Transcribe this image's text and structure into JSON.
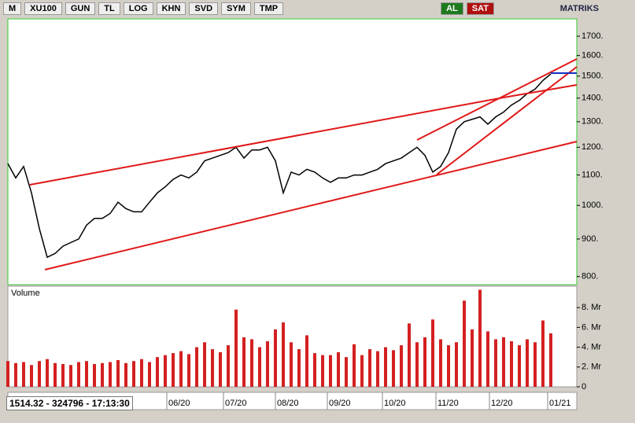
{
  "toolbar": {
    "logo": "M",
    "symbol": "XU100",
    "buttons": [
      "GUN",
      "TL",
      "LOG",
      "KHN",
      "SVD",
      "SYM",
      "TMP"
    ],
    "buy": "AL",
    "sell": "SAT",
    "brand": "MATRIKS"
  },
  "status": "1514.32 - 324796 - 17:13:30",
  "chart_data": [
    {
      "type": "line",
      "log_scale": true,
      "xlim": [
        0,
        72.3
      ],
      "ylim": [
        780,
        1795
      ],
      "yticks": [
        {
          "value": 800,
          "label": "800."
        },
        {
          "value": 900,
          "label": "900."
        },
        {
          "value": 1000,
          "label": "1000."
        },
        {
          "value": 1100,
          "label": "1100."
        },
        {
          "value": 1200,
          "label": "1200."
        },
        {
          "value": 1300,
          "label": "1300."
        },
        {
          "value": 1400,
          "label": "1400."
        },
        {
          "value": 1500,
          "label": "1500."
        },
        {
          "value": 1600,
          "label": "1600."
        },
        {
          "value": 1700,
          "label": "1700."
        }
      ],
      "series": [
        {
          "color": "#000000",
          "values": [
            1140,
            1090,
            1130,
            1040,
            930,
            850,
            860,
            880,
            890,
            900,
            940,
            960,
            960,
            975,
            1010,
            990,
            980,
            980,
            1010,
            1040,
            1060,
            1085,
            1100,
            1090,
            1110,
            1150,
            1160,
            1170,
            1180,
            1200,
            1160,
            1190,
            1190,
            1200,
            1150,
            1040,
            1110,
            1100,
            1120,
            1110,
            1090,
            1075,
            1090,
            1090,
            1100,
            1100,
            1110,
            1120,
            1140,
            1150,
            1160,
            1180,
            1200,
            1170,
            1110,
            1130,
            1180,
            1270,
            1300,
            1310,
            1320,
            1290,
            1320,
            1340,
            1370,
            1390,
            1420,
            1440,
            1480,
            1510
          ]
        }
      ]
    },
    {
      "type": "bar",
      "title": "Volume",
      "xlim": [
        0,
        72.3
      ],
      "ylim": [
        0,
        10
      ],
      "color": "#d42020",
      "yticks": [
        0,
        {
          "value": 2,
          "label": "2. Mr"
        },
        {
          "value": 4,
          "label": "4. Mr"
        },
        {
          "value": 6,
          "label": "6. Mr"
        },
        {
          "value": 8,
          "label": "8. Mr"
        }
      ],
      "xticks": [
        {
          "value": 20.4,
          "label": "06/20"
        },
        {
          "value": 27.6,
          "label": "07/20"
        },
        {
          "value": 34.2,
          "label": "08/20"
        },
        {
          "value": 40.8,
          "label": "09/20"
        },
        {
          "value": 47.8,
          "label": "10/20"
        },
        {
          "value": 54.6,
          "label": "11/20"
        },
        {
          "value": 61.4,
          "label": "12/20"
        },
        {
          "value": 68.8,
          "label": "01/21"
        }
      ],
      "values": [
        2.6,
        2.4,
        2.5,
        2.2,
        2.6,
        2.8,
        2.4,
        2.3,
        2.2,
        2.5,
        2.6,
        2.3,
        2.4,
        2.5,
        2.7,
        2.4,
        2.6,
        2.8,
        2.5,
        3.0,
        3.2,
        3.4,
        3.6,
        3.3,
        4.0,
        4.5,
        3.8,
        3.5,
        4.2,
        7.8,
        5.0,
        4.8,
        4.0,
        4.6,
        5.8,
        6.5,
        4.5,
        3.8,
        5.2,
        3.4,
        3.2,
        3.2,
        3.5,
        3.0,
        4.3,
        3.2,
        3.8,
        3.6,
        4.0,
        3.7,
        4.2,
        6.4,
        4.5,
        5.0,
        6.8,
        4.8,
        4.2,
        4.5,
        8.7,
        5.8,
        9.8,
        5.6,
        4.8,
        5.0,
        4.6,
        4.2,
        4.8,
        4.5,
        6.7,
        5.4
      ]
    }
  ]
}
